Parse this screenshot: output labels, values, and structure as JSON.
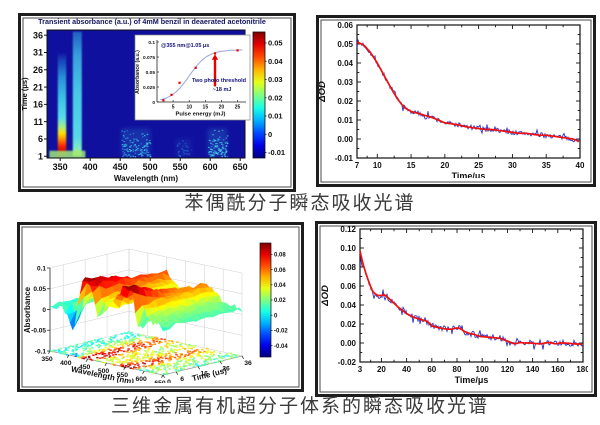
{
  "captions": {
    "top": "苯偶酰分子瞬态吸收光谱",
    "bottom": "三维金属有机超分子体系的瞬态吸收光谱"
  },
  "chart_data": [
    {
      "id": "benzil-heatmap",
      "type": "heatmap",
      "title": "Transient absorbance (a.u.) of 4mM benzil in deaerated acetonitrile",
      "title_color": "#15155f",
      "xlabel": "Wavelength (nm)",
      "ylabel": "Time (μs)",
      "xticks": [
        350,
        400,
        450,
        500,
        550,
        600,
        650
      ],
      "yticks": [
        1,
        6,
        11,
        16,
        21,
        26,
        31,
        36
      ],
      "xlim": [
        328,
        658
      ],
      "ylim": [
        0.5,
        37.5
      ],
      "background_color": "#10109e",
      "colorbar": {
        "vmin": -0.013,
        "vmax": 0.056,
        "tick_values": [
          0.05,
          0.04,
          0.03,
          0.02,
          0.01,
          0,
          -0.01
        ],
        "tick_labels": [
          "0.05",
          "0.04",
          "0.03",
          "0.02",
          "0.01",
          "0",
          "-0.01"
        ]
      },
      "streaks": [
        {
          "wl": [
            346,
            360
          ],
          "t": [
            1,
            31
          ],
          "stops": [
            [
              "#8a0000",
              0
            ],
            [
              "#d40000",
              0.05
            ],
            [
              "#ff3300",
              0.11
            ],
            [
              "#ff9900",
              0.17
            ],
            [
              "#ffe000",
              0.22
            ],
            [
              "#aaf080",
              0.28
            ],
            [
              "#58dcea",
              0.37
            ],
            [
              "#3cc2e4",
              0.56
            ],
            [
              "#2a8fd8",
              0.76
            ],
            [
              "#1440b8",
              0.93
            ],
            [
              "#10109e",
              1
            ]
          ]
        },
        {
          "wl": [
            371,
            386
          ],
          "t": [
            1,
            37
          ],
          "stops": [
            [
              "#c8f060",
              0
            ],
            [
              "#7ae8c8",
              0.07
            ],
            [
              "#55d8e8",
              0.16
            ],
            [
              "#48c8e8",
              0.5
            ],
            [
              "#38a0dc",
              0.8
            ],
            [
              "#2060c0",
              1
            ]
          ]
        }
      ],
      "baseband": {
        "wl": [
          332,
          392
        ],
        "t": [
          1,
          2.6
        ],
        "color": "#9ee87a"
      },
      "blobs": [
        {
          "wl": [
            452,
            500
          ],
          "t": [
            1,
            9
          ],
          "color": "#3ec8e8",
          "density": 0.5
        },
        {
          "wl": [
            543,
            568
          ],
          "t": [
            1,
            6
          ],
          "color": "#2a6fd0",
          "density": 0.35
        },
        {
          "wl": [
            596,
            628
          ],
          "t": [
            1,
            9
          ],
          "color": "#45d2ea",
          "density": 0.7
        }
      ],
      "inset": {
        "annotation": "@355 nm@1.05 μs",
        "xlabel": "Pulse energy (mJ)",
        "ylabel": "Absorbance (a.u.)",
        "xticks": [
          5,
          10,
          15,
          20,
          25
        ],
        "ytick_values": [
          0,
          0.025,
          0.05,
          0.075,
          0.1
        ],
        "ytick_labels": [
          "0",
          "0.025",
          "0.05",
          "0.075",
          "0.1"
        ],
        "xlim": [
          0,
          27
        ],
        "ylim": [
          0,
          0.1
        ],
        "curve_color": "#9aa2e0",
        "marker_color": "#e80000",
        "sigmoid": {
          "amp": 0.087,
          "x0": 10,
          "k": 0.35
        },
        "points": [
          [
            2,
            0.003
          ],
          [
            4.5,
            0.012
          ],
          [
            7,
            0.032
          ],
          [
            12,
            0.057
          ],
          [
            18,
            0.081
          ],
          [
            25,
            0.086
          ]
        ],
        "arrow": {
          "x": 18,
          "y_from": 0.026,
          "y_to": 0.072,
          "color": "#e80000"
        },
        "threshold_line1": "Two photo threshold",
        "threshold_line2": "~18 mJ",
        "text_color": "#10107a"
      }
    },
    {
      "id": "benzil-decay",
      "type": "line",
      "xlabel": "Time/μs",
      "ylabel": "ΔOD",
      "xlim": [
        7,
        40
      ],
      "ylim": [
        -0.01,
        0.06
      ],
      "xticks": [
        7,
        10,
        15,
        20,
        25,
        30,
        35,
        40
      ],
      "yticks": [
        -0.01,
        0,
        0.01,
        0.02,
        0.03,
        0.04,
        0.05,
        0.06
      ],
      "ytick_labels": [
        "-0.01",
        "0.00",
        "0.01",
        "0.02",
        "0.03",
        "0.04",
        "0.05",
        "0.06"
      ],
      "data_color": "#2424b4",
      "fit_color": "#ee1111",
      "noise": 0.0013,
      "fit": [
        [
          7,
          0.051
        ],
        [
          8,
          0.0495
        ],
        [
          9,
          0.0455
        ],
        [
          10,
          0.04
        ],
        [
          11,
          0.0335
        ],
        [
          12,
          0.027
        ],
        [
          13,
          0.021
        ],
        [
          14,
          0.0165
        ],
        [
          15,
          0.0145
        ],
        [
          16,
          0.0135
        ],
        [
          17,
          0.0125
        ],
        [
          18,
          0.0115
        ],
        [
          19,
          0.01
        ],
        [
          20,
          0.0085
        ],
        [
          21,
          0.008
        ],
        [
          22,
          0.0075
        ],
        [
          23,
          0.0065
        ],
        [
          24,
          0.006
        ],
        [
          25,
          0.0055
        ],
        [
          26,
          0.005
        ],
        [
          27,
          0.005
        ],
        [
          28,
          0.0045
        ],
        [
          29,
          0.004
        ],
        [
          30,
          0.0035
        ],
        [
          31,
          0.003
        ],
        [
          32,
          0.003
        ],
        [
          33,
          0.0025
        ],
        [
          34,
          0.002
        ],
        [
          35,
          0.002
        ],
        [
          36,
          0.0015
        ],
        [
          37,
          0.001
        ],
        [
          38,
          0.0005
        ],
        [
          39,
          0
        ],
        [
          40,
          -0.0015
        ]
      ]
    },
    {
      "id": "supramolecule-surface",
      "type": "surface",
      "xlabel": "Wavelength (nm)",
      "ylabel": "Time (us)",
      "zlabel": "Absorbance",
      "xticks": [
        350,
        400,
        450,
        500,
        550,
        600,
        650
      ],
      "yticks": [
        0,
        6,
        16,
        26,
        36
      ],
      "ztick_values": [
        0.1,
        0.05,
        0,
        -0.05,
        -0.1
      ],
      "ztick_labels": [
        "0.1",
        "0.05",
        "0",
        "-0.05",
        "-0.1"
      ],
      "xlim": [
        350,
        650
      ],
      "ylim": [
        0,
        36
      ],
      "zlim": [
        -0.1,
        0.1
      ],
      "colorbar": {
        "vmin": -0.055,
        "vmax": 0.095,
        "tick_values": [
          0.08,
          0.06,
          0.04,
          0.02,
          0,
          -0.02,
          -0.04
        ],
        "tick_labels": [
          "0.08",
          "0.06",
          "0.04",
          "0.02",
          "0",
          "-0.02",
          "-0.04"
        ]
      },
      "base": 0.006,
      "noise": 0.007,
      "ridges": [
        {
          "wl": 443,
          "sigma": 36,
          "amp0": 0.075,
          "amp1": 0.038,
          "tdecay": 28
        },
        {
          "wl": 557,
          "sigma": 28,
          "amp0": 0.07,
          "amp1": 0.028,
          "tdecay": 10
        },
        {
          "wl": 540,
          "sigma": 110,
          "amp0": 0.03,
          "amp1": 0.015,
          "tdecay": 30
        }
      ],
      "dips": [
        {
          "wl": 413,
          "sigma": 16,
          "amp": -0.085,
          "tdecay": 5
        },
        {
          "wl": 478,
          "sigma": 12,
          "amp": -0.05,
          "tdecay": 5
        },
        {
          "wl": 586,
          "sigma": 16,
          "amp": -0.05,
          "tdecay": 4
        }
      ]
    },
    {
      "id": "supramolecule-decay",
      "type": "line",
      "xlabel": "Time/μs",
      "ylabel": "ΔOD",
      "xlim": [
        3,
        180
      ],
      "ylim": [
        -0.02,
        0.12
      ],
      "xticks": [
        3,
        20,
        40,
        60,
        80,
        100,
        120,
        140,
        160,
        180
      ],
      "yticks": [
        -0.02,
        0,
        0.02,
        0.04,
        0.06,
        0.08,
        0.1,
        0.12
      ],
      "ytick_labels": [
        "-0.02",
        "0.00",
        "0.02",
        "0.04",
        "0.06",
        "0.08",
        "0.10",
        "0.12"
      ],
      "data_color": "#2424b4",
      "fit_color": "#ee1111",
      "noise": 0.0032,
      "fit": [
        [
          3,
          0.097
        ],
        [
          5,
          0.085
        ],
        [
          7,
          0.076
        ],
        [
          9,
          0.068
        ],
        [
          11,
          0.061
        ],
        [
          13,
          0.054
        ],
        [
          15,
          0.052
        ],
        [
          17,
          0.05
        ],
        [
          20,
          0.05
        ],
        [
          22,
          0.051
        ],
        [
          24,
          0.049
        ],
        [
          26,
          0.047
        ],
        [
          28,
          0.044
        ],
        [
          30,
          0.042
        ],
        [
          33,
          0.038
        ],
        [
          36,
          0.035
        ],
        [
          40,
          0.031
        ],
        [
          44,
          0.028
        ],
        [
          48,
          0.026
        ],
        [
          52,
          0.0245
        ],
        [
          56,
          0.023
        ],
        [
          58,
          0.021
        ],
        [
          60,
          0.018
        ],
        [
          64,
          0.0165
        ],
        [
          68,
          0.0155
        ],
        [
          72,
          0.0145
        ],
        [
          76,
          0.0145
        ],
        [
          80,
          0.016
        ],
        [
          83,
          0.015
        ],
        [
          86,
          0.012
        ],
        [
          90,
          0.01
        ],
        [
          94,
          0.009
        ],
        [
          98,
          0.007
        ],
        [
          102,
          0.0065
        ],
        [
          106,
          0.006
        ],
        [
          110,
          0.0055
        ],
        [
          114,
          0.005
        ],
        [
          118,
          0.003
        ],
        [
          122,
          0.001
        ],
        [
          126,
          -0.001
        ],
        [
          130,
          0.0005
        ],
        [
          134,
          0
        ],
        [
          138,
          0
        ],
        [
          142,
          -0.0005
        ],
        [
          146,
          -0.001
        ],
        [
          150,
          0
        ],
        [
          154,
          0.0005
        ],
        [
          158,
          -0.001
        ],
        [
          162,
          0
        ],
        [
          166,
          0
        ],
        [
          170,
          -0.0005
        ],
        [
          174,
          -0.001
        ],
        [
          178,
          -0.001
        ],
        [
          180,
          -0.002
        ]
      ]
    }
  ]
}
